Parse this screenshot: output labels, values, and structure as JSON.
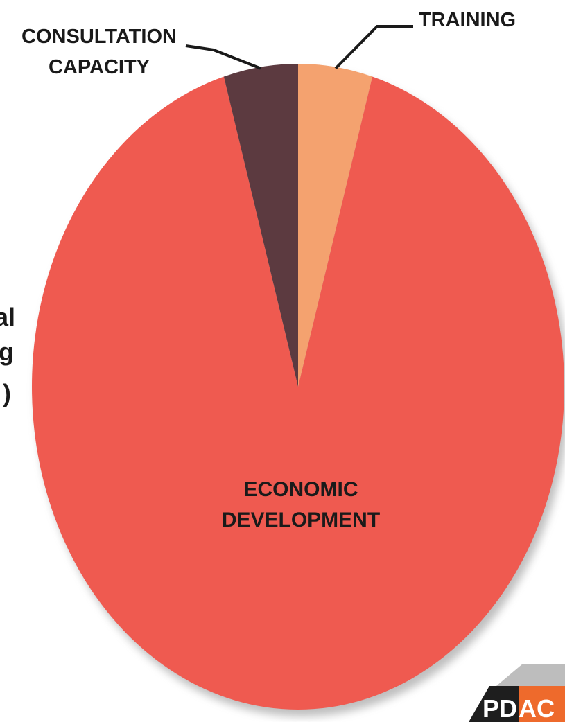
{
  "chart_data": {
    "type": "pie",
    "title": "",
    "slices": [
      {
        "label": "TRAINING",
        "value": 4.5,
        "color": "#F4A26F"
      },
      {
        "label": "ECONOMIC DEVELOPMENT",
        "value": 91.0,
        "color": "#EF5A50"
      },
      {
        "label": "CONSULTATION CAPACITY",
        "value": 4.5,
        "color": "#5C3A40"
      }
    ],
    "labels": {
      "training": "TRAINING",
      "consultation_line1": "CONSULTATION",
      "consultation_line2": "CAPACITY",
      "economic_line1": "ECONOMIC",
      "economic_line2": "DEVELOPMENT"
    },
    "clipped_left_text": [
      "al",
      "g",
      ")"
    ],
    "legend": "none"
  },
  "logo": {
    "text_left": "PD",
    "text_right": "AC"
  },
  "colors": {
    "background": "#ffffff",
    "shadow": "#8a8a8a",
    "logo_dark": "#1e1e1e",
    "logo_orange": "#EE6A2C",
    "logo_grey": "#bdbdbd"
  }
}
